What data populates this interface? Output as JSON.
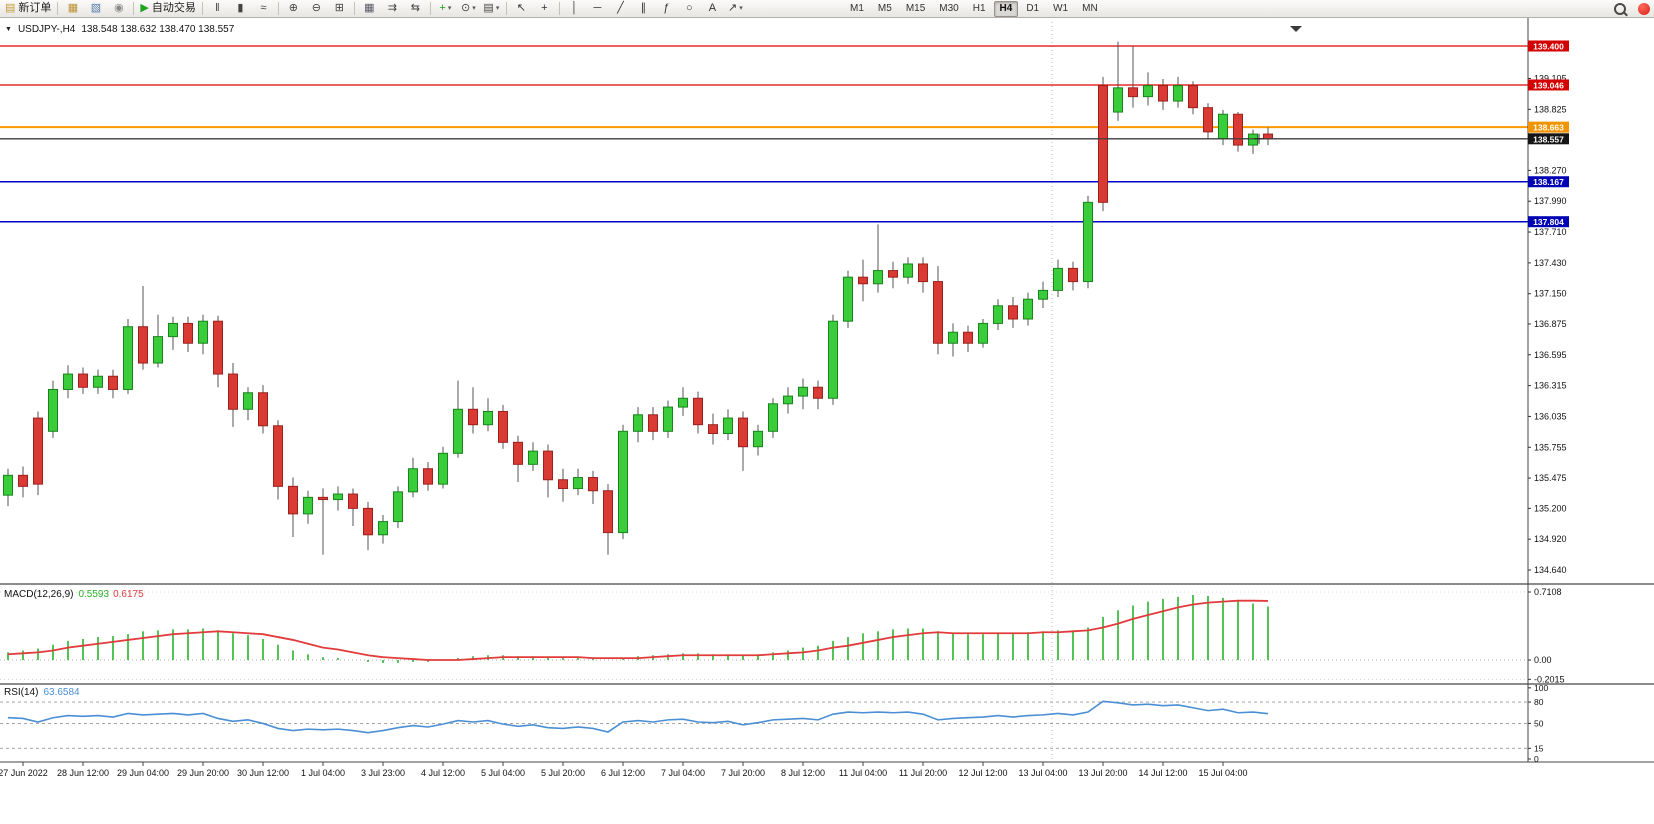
{
  "toolbar": {
    "groups": [
      {
        "items": [
          {
            "name": "new-order",
            "glyph": "▤",
            "glyph_color": "#c29a37",
            "label": "新订单"
          }
        ]
      },
      {
        "items": [
          {
            "name": "new-chart",
            "glyph": "▦",
            "glyph_color": "#b8912f"
          },
          {
            "name": "chart-profiles",
            "glyph": "▧",
            "glyph_color": "#5577aa"
          },
          {
            "name": "data-window",
            "glyph": "◉",
            "glyph_color": "#8a8a8a"
          }
        ]
      },
      {
        "items": [
          {
            "name": "autotrading",
            "glyph": "▶",
            "glyph_color": "#1fa31f",
            "label": "自动交易"
          }
        ]
      },
      {
        "items": [
          {
            "name": "bar-chart",
            "glyph": "‖",
            "glyph_color": "#444444"
          },
          {
            "name": "candlestick-chart",
            "glyph": "▮",
            "glyph_color": "#444444"
          },
          {
            "name": "line-chart",
            "glyph": "≈",
            "glyph_color": "#444444"
          }
        ]
      },
      {
        "items": [
          {
            "name": "zoom-in",
            "glyph": "⊕",
            "glyph_color": "#444444"
          },
          {
            "name": "zoom-out",
            "glyph": "⊖",
            "glyph_color": "#444444"
          },
          {
            "name": "grid",
            "glyph": "⊞",
            "glyph_color": "#444444"
          }
        ]
      },
      {
        "items": [
          {
            "name": "tile-windows",
            "glyph": "▦",
            "glyph_color": "#555566"
          },
          {
            "name": "auto-scroll",
            "glyph": "⇉",
            "glyph_color": "#444444"
          },
          {
            "name": "chart-shift",
            "glyph": "⇆",
            "glyph_color": "#444444"
          }
        ]
      },
      {
        "items": [
          {
            "name": "indicators",
            "glyph": "+",
            "glyph_color": "#1fa31f",
            "caret": true
          },
          {
            "name": "periods",
            "glyph": "⊙",
            "glyph_color": "#444444",
            "caret": true
          },
          {
            "name": "templates",
            "glyph": "▤",
            "glyph_color": "#444444",
            "caret": true
          }
        ]
      },
      {
        "items": [
          {
            "name": "cursor",
            "glyph": "↖",
            "glyph_color": "#333333"
          },
          {
            "name": "crosshair",
            "glyph": "+",
            "glyph_color": "#333333"
          }
        ]
      },
      {
        "items": [
          {
            "name": "vertical-line",
            "glyph": "│",
            "glyph_color": "#333333"
          },
          {
            "name": "horizontal-line",
            "glyph": "─",
            "glyph_color": "#333333"
          },
          {
            "name": "trendline",
            "glyph": "╱",
            "glyph_color": "#333333"
          },
          {
            "name": "equidistant-channel",
            "glyph": "∥",
            "glyph_color": "#333333"
          },
          {
            "name": "fibonacci",
            "glyph": "ƒ",
            "glyph_color": "#333333"
          },
          {
            "name": "shapes",
            "glyph": "○",
            "glyph_color": "#333333"
          },
          {
            "name": "text-label",
            "glyph": "A",
            "glyph_color": "#333333"
          },
          {
            "name": "arrows",
            "glyph": "↗",
            "glyph_color": "#333333",
            "caret": true
          }
        ]
      }
    ],
    "timeframes": [
      "M1",
      "M5",
      "M15",
      "M30",
      "H1",
      "H4",
      "D1",
      "W1",
      "MN"
    ],
    "active_timeframe": "H4"
  },
  "header": {
    "collapse_glyph": "▼",
    "symbol_period": "USDJPY-,H4",
    "ohlc": "138.548 138.632 138.470 138.557"
  },
  "chart_data": {
    "type": "candlestick",
    "symbol": "USDJPY-",
    "timeframe": "H4",
    "ylim": [
      134.522,
      139.618
    ],
    "grid": false,
    "up_color": "#3bcc3b",
    "down_color": "#da3a34",
    "candles": [
      [
        135.32,
        135.56,
        135.22,
        135.5
      ],
      [
        135.5,
        135.58,
        135.3,
        135.4
      ],
      [
        136.02,
        136.08,
        135.32,
        135.42
      ],
      [
        135.9,
        136.36,
        135.84,
        136.28
      ],
      [
        136.28,
        136.5,
        136.2,
        136.42
      ],
      [
        136.42,
        136.48,
        136.24,
        136.3
      ],
      [
        136.3,
        136.46,
        136.24,
        136.4
      ],
      [
        136.4,
        136.46,
        136.2,
        136.28
      ],
      [
        136.28,
        136.92,
        136.24,
        136.85
      ],
      [
        136.85,
        137.22,
        136.46,
        136.52
      ],
      [
        136.52,
        136.96,
        136.48,
        136.76
      ],
      [
        136.76,
        136.94,
        136.64,
        136.88
      ],
      [
        136.88,
        136.94,
        136.62,
        136.7
      ],
      [
        136.7,
        136.96,
        136.6,
        136.9
      ],
      [
        136.9,
        136.95,
        136.3,
        136.42
      ],
      [
        136.42,
        136.52,
        135.94,
        136.1
      ],
      [
        136.1,
        136.3,
        136.0,
        136.25
      ],
      [
        136.25,
        136.32,
        135.88,
        135.95
      ],
      [
        135.95,
        136.0,
        135.28,
        135.4
      ],
      [
        135.4,
        135.48,
        134.94,
        135.15
      ],
      [
        135.15,
        135.36,
        135.06,
        135.3
      ],
      [
        135.3,
        135.38,
        134.78,
        135.28
      ],
      [
        135.28,
        135.4,
        135.18,
        135.33
      ],
      [
        135.33,
        135.38,
        135.04,
        135.2
      ],
      [
        135.2,
        135.26,
        134.82,
        134.96
      ],
      [
        134.96,
        135.14,
        134.88,
        135.08
      ],
      [
        135.08,
        135.4,
        135.02,
        135.35
      ],
      [
        135.35,
        135.66,
        135.3,
        135.56
      ],
      [
        135.56,
        135.62,
        135.36,
        135.42
      ],
      [
        135.42,
        135.76,
        135.38,
        135.7
      ],
      [
        135.7,
        136.36,
        135.66,
        136.1
      ],
      [
        136.1,
        136.3,
        135.88,
        135.96
      ],
      [
        135.96,
        136.2,
        135.9,
        136.08
      ],
      [
        136.08,
        136.14,
        135.74,
        135.8
      ],
      [
        135.8,
        135.86,
        135.44,
        135.6
      ],
      [
        135.6,
        135.8,
        135.54,
        135.72
      ],
      [
        135.72,
        135.78,
        135.3,
        135.46
      ],
      [
        135.46,
        135.56,
        135.26,
        135.38
      ],
      [
        135.38,
        135.56,
        135.32,
        135.48
      ],
      [
        135.48,
        135.54,
        135.24,
        135.36
      ],
      [
        135.36,
        135.42,
        134.78,
        134.98
      ],
      [
        134.98,
        135.96,
        134.92,
        135.9
      ],
      [
        135.9,
        136.12,
        135.8,
        136.05
      ],
      [
        136.05,
        136.12,
        135.82,
        135.9
      ],
      [
        135.9,
        136.18,
        135.84,
        136.12
      ],
      [
        136.12,
        136.3,
        136.04,
        136.2
      ],
      [
        136.2,
        136.26,
        135.88,
        135.96
      ],
      [
        135.96,
        136.06,
        135.78,
        135.88
      ],
      [
        135.88,
        136.1,
        135.82,
        136.02
      ],
      [
        136.02,
        136.08,
        135.54,
        135.76
      ],
      [
        135.76,
        135.96,
        135.68,
        135.9
      ],
      [
        135.9,
        136.2,
        135.84,
        136.15
      ],
      [
        136.15,
        136.3,
        136.06,
        136.22
      ],
      [
        136.22,
        136.38,
        136.1,
        136.3
      ],
      [
        136.3,
        136.36,
        136.1,
        136.2
      ],
      [
        136.2,
        136.96,
        136.14,
        136.9
      ],
      [
        136.9,
        137.36,
        136.84,
        137.3
      ],
      [
        137.3,
        137.46,
        137.08,
        137.24
      ],
      [
        137.24,
        137.78,
        137.16,
        137.36
      ],
      [
        137.36,
        137.44,
        137.2,
        137.3
      ],
      [
        137.3,
        137.48,
        137.24,
        137.42
      ],
      [
        137.42,
        137.48,
        137.16,
        137.26
      ],
      [
        137.26,
        137.4,
        136.6,
        136.7
      ],
      [
        136.7,
        136.88,
        136.58,
        136.8
      ],
      [
        136.8,
        136.86,
        136.62,
        136.7
      ],
      [
        136.7,
        136.92,
        136.66,
        136.88
      ],
      [
        136.88,
        137.1,
        136.82,
        137.04
      ],
      [
        137.04,
        137.12,
        136.84,
        136.92
      ],
      [
        136.92,
        137.16,
        136.86,
        137.1
      ],
      [
        137.1,
        137.26,
        137.02,
        137.18
      ],
      [
        137.18,
        137.46,
        137.12,
        137.38
      ],
      [
        137.38,
        137.44,
        137.18,
        137.26
      ],
      [
        137.26,
        138.04,
        137.2,
        137.98
      ],
      [
        139.04,
        139.12,
        137.9,
        137.98
      ],
      [
        138.8,
        139.44,
        138.72,
        139.02
      ],
      [
        139.02,
        139.4,
        138.84,
        138.94
      ],
      [
        138.94,
        139.16,
        138.86,
        139.04
      ],
      [
        139.04,
        139.1,
        138.82,
        138.9
      ],
      [
        138.9,
        139.12,
        138.84,
        139.04
      ],
      [
        139.04,
        139.08,
        138.78,
        138.84
      ],
      [
        138.84,
        138.88,
        138.56,
        138.62
      ],
      [
        138.56,
        138.82,
        138.5,
        138.78
      ],
      [
        138.78,
        138.8,
        138.44,
        138.5
      ],
      [
        138.5,
        138.64,
        138.42,
        138.6
      ],
      [
        138.6,
        138.66,
        138.5,
        138.557
      ]
    ],
    "price_ticks": [
      "139.105",
      "138.825",
      "138.270",
      "137.990",
      "137.710",
      "137.430",
      "137.150",
      "136.875",
      "136.595",
      "136.315",
      "136.035",
      "135.755",
      "135.475",
      "135.200",
      "134.920",
      "134.640"
    ],
    "hlines": [
      {
        "label": "139.400",
        "price": 139.4,
        "color": "#e00000",
        "badge": "#d40000",
        "width": 1.3
      },
      {
        "label": "139.046",
        "price": 139.046,
        "color": "#e00000",
        "badge": "#d40000",
        "width": 1.3
      },
      {
        "label": "138.663",
        "price": 138.663,
        "color": "#ff9900",
        "badge": "#f29400",
        "width": 2
      },
      {
        "label": "138.557",
        "price": 138.557,
        "color": "#3a3a3a",
        "badge": "#151515",
        "width": 1.2,
        "current": true
      },
      {
        "label": "138.167",
        "price": 138.167,
        "color": "#0000c8",
        "badge": "#0000b4",
        "width": 1.5
      },
      {
        "label": "137.804",
        "price": 137.804,
        "color": "#0000c8",
        "badge": "#0000b4",
        "width": 1.5
      }
    ],
    "pointer": {
      "price": 138.557,
      "index": 83.4
    },
    "day_separator_index": 69.6,
    "time_axis": [
      {
        "i": 1,
        "label": "27 Jun 2022"
      },
      {
        "i": 5,
        "label": "28 Jun 12:00"
      },
      {
        "i": 9,
        "label": "29 Jun 04:00"
      },
      {
        "i": 13,
        "label": "29 Jun 20:00"
      },
      {
        "i": 17,
        "label": "30 Jun 12:00"
      },
      {
        "i": 21,
        "label": "1 Jul 04:00"
      },
      {
        "i": 25,
        "label": "3 Jul 23:00"
      },
      {
        "i": 29,
        "label": "4 Jul 12:00"
      },
      {
        "i": 33,
        "label": "5 Jul 04:00"
      },
      {
        "i": 37,
        "label": "5 Jul 20:00"
      },
      {
        "i": 41,
        "label": "6 Jul 12:00"
      },
      {
        "i": 45,
        "label": "7 Jul 04:00"
      },
      {
        "i": 49,
        "label": "7 Jul 20:00"
      },
      {
        "i": 53,
        "label": "8 Jul 12:00"
      },
      {
        "i": 57,
        "label": "11 Jul 04:00"
      },
      {
        "i": 61,
        "label": "11 Jul 20:00"
      },
      {
        "i": 65,
        "label": "12 Jul 12:00"
      },
      {
        "i": 69,
        "label": "13 Jul 04:00"
      },
      {
        "i": 73,
        "label": "13 Jul 20:00"
      },
      {
        "i": 77,
        "label": "14 Jul 12:00"
      },
      {
        "i": 81,
        "label": "15 Jul 04:00"
      }
    ],
    "macd": {
      "label": "MACD(12,26,9)",
      "value1": "0.5593",
      "value2": "0.6175",
      "ylim": [
        -0.24,
        0.784
      ],
      "axis_labels": [
        "0.7108",
        "0.00",
        "-0.2015"
      ],
      "axis_values": [
        0.7108,
        0,
        -0.2015
      ],
      "hist_color": "#2ab32a",
      "signal_color": "#e23b3b",
      "hist": [
        0.08,
        0.1,
        0.12,
        0.16,
        0.2,
        0.22,
        0.24,
        0.25,
        0.27,
        0.3,
        0.31,
        0.32,
        0.32,
        0.33,
        0.31,
        0.28,
        0.26,
        0.22,
        0.16,
        0.1,
        0.06,
        0.03,
        0.02,
        0.0,
        -0.02,
        -0.03,
        -0.03,
        -0.02,
        -0.02,
        0.0,
        0.02,
        0.04,
        0.05,
        0.05,
        0.04,
        0.04,
        0.03,
        0.02,
        0.02,
        0.01,
        0.0,
        0.02,
        0.04,
        0.05,
        0.06,
        0.07,
        0.07,
        0.06,
        0.06,
        0.05,
        0.06,
        0.08,
        0.1,
        0.13,
        0.15,
        0.2,
        0.24,
        0.28,
        0.3,
        0.32,
        0.33,
        0.33,
        0.3,
        0.28,
        0.27,
        0.27,
        0.28,
        0.28,
        0.29,
        0.3,
        0.31,
        0.31,
        0.34,
        0.45,
        0.52,
        0.57,
        0.61,
        0.64,
        0.66,
        0.68,
        0.67,
        0.65,
        0.62,
        0.59,
        0.5593
      ],
      "signal": [
        0.06,
        0.07,
        0.08,
        0.1,
        0.13,
        0.15,
        0.17,
        0.19,
        0.21,
        0.23,
        0.25,
        0.27,
        0.28,
        0.29,
        0.3,
        0.29,
        0.28,
        0.27,
        0.24,
        0.21,
        0.17,
        0.13,
        0.11,
        0.08,
        0.05,
        0.03,
        0.02,
        0.01,
        0.0,
        0.0,
        0.0,
        0.01,
        0.02,
        0.03,
        0.03,
        0.03,
        0.03,
        0.03,
        0.03,
        0.02,
        0.02,
        0.02,
        0.02,
        0.03,
        0.04,
        0.05,
        0.05,
        0.05,
        0.05,
        0.05,
        0.05,
        0.06,
        0.07,
        0.08,
        0.1,
        0.13,
        0.15,
        0.18,
        0.21,
        0.24,
        0.26,
        0.28,
        0.29,
        0.28,
        0.28,
        0.28,
        0.28,
        0.28,
        0.28,
        0.29,
        0.29,
        0.3,
        0.31,
        0.34,
        0.38,
        0.43,
        0.47,
        0.51,
        0.55,
        0.58,
        0.6,
        0.61,
        0.62,
        0.62,
        0.6175
      ]
    },
    "rsi": {
      "label": "RSI(14)",
      "value": "63.6584",
      "ylim": [
        -4.2,
        104
      ],
      "line_color": "#4a8fd4",
      "levels": [
        80,
        50,
        15
      ],
      "axis_labels": [
        "100",
        "80",
        "50",
        "15",
        "0"
      ],
      "axis_values": [
        100,
        80,
        50,
        15,
        0
      ],
      "values": [
        58,
        57,
        52,
        58,
        61,
        60,
        61,
        59,
        64,
        62,
        63,
        64,
        62,
        64,
        57,
        53,
        55,
        50,
        43,
        40,
        42,
        41,
        42,
        40,
        37,
        40,
        44,
        47,
        45,
        49,
        54,
        52,
        54,
        49,
        46,
        48,
        44,
        43,
        45,
        43,
        38,
        52,
        54,
        52,
        55,
        56,
        52,
        51,
        53,
        48,
        51,
        55,
        56,
        57,
        55,
        63,
        66,
        65,
        66,
        65,
        66,
        63,
        55,
        57,
        58,
        59,
        61,
        59,
        61,
        62,
        64,
        62,
        66,
        81,
        79,
        76,
        77,
        75,
        76,
        72,
        68,
        70,
        65,
        66,
        63.66
      ]
    }
  }
}
